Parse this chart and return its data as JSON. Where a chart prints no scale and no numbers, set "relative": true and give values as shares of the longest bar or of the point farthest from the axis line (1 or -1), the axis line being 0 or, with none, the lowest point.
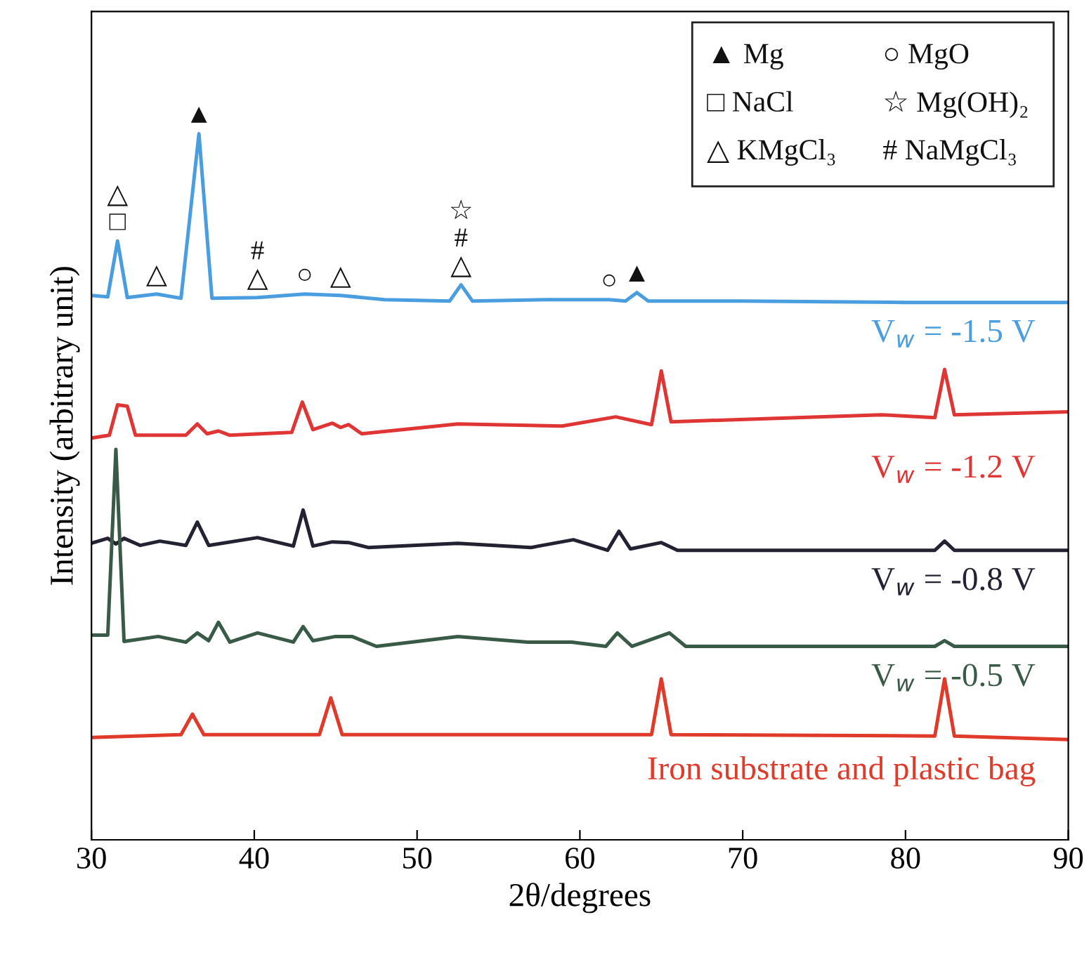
{
  "chart_data": {
    "type": "line",
    "relative": true,
    "xlabel": "2θ/degrees",
    "ylabel": "Intensity (arbitrary unit)",
    "xlim": [
      30,
      90
    ],
    "xticks": [
      30,
      40,
      50,
      60,
      70,
      80,
      90
    ],
    "grid": false,
    "marker": "none",
    "line_style": "solid",
    "series": [
      {
        "name": "V$_{w}$ = -1.5 V",
        "color": "#4a9ee0",
        "x": [
          30,
          31.0,
          31.6,
          32.2,
          34.0,
          35.5,
          36.6,
          37.4,
          40.2,
          43.1,
          45.3,
          48,
          52.0,
          52.7,
          53.4,
          58,
          61.8,
          62.8,
          63.5,
          64.2,
          70,
          80,
          90
        ],
        "values": [
          0.771,
          0.769,
          0.848,
          0.768,
          0.773,
          0.767,
          1.0,
          0.767,
          0.768,
          0.773,
          0.771,
          0.765,
          0.763,
          0.786,
          0.763,
          0.765,
          0.765,
          0.763,
          0.775,
          0.763,
          0.763,
          0.761,
          0.761
        ]
      },
      {
        "name": "V$_{w}$ = -1.2 V",
        "color": "#e03535",
        "x": [
          30,
          31.1,
          31.6,
          32.2,
          32.7,
          35.8,
          36.5,
          37.1,
          37.8,
          38.5,
          42.3,
          42.95,
          43.6,
          44.8,
          45.3,
          45.8,
          46.6,
          52.5,
          58.9,
          62.2,
          64.4,
          65.0,
          65.6,
          78.5,
          81.8,
          82.4,
          83.0,
          90
        ],
        "values": [
          0.569,
          0.573,
          0.616,
          0.614,
          0.573,
          0.573,
          0.589,
          0.575,
          0.579,
          0.573,
          0.577,
          0.62,
          0.581,
          0.59,
          0.584,
          0.588,
          0.575,
          0.589,
          0.586,
          0.599,
          0.588,
          0.664,
          0.592,
          0.602,
          0.598,
          0.666,
          0.602,
          0.606
        ]
      },
      {
        "name": "V$_{w}$ = -0.8 V",
        "color": "#222233",
        "x": [
          30,
          31.0,
          31.5,
          32.0,
          33.0,
          34.2,
          35.8,
          36.5,
          37.2,
          40.2,
          42.4,
          43.0,
          43.6,
          44.8,
          45.8,
          47,
          52.5,
          57,
          59.6,
          61.7,
          62.4,
          63.1,
          65,
          66,
          81.8,
          82.4,
          83.0,
          90
        ],
        "values": [
          0.42,
          0.427,
          0.419,
          0.427,
          0.417,
          0.423,
          0.417,
          0.45,
          0.417,
          0.428,
          0.416,
          0.467,
          0.416,
          0.422,
          0.421,
          0.414,
          0.42,
          0.414,
          0.425,
          0.41,
          0.437,
          0.412,
          0.421,
          0.41,
          0.41,
          0.423,
          0.41,
          0.41
        ]
      },
      {
        "name": "V$_{w}$ = -0.5 V",
        "color": "#3a5a48",
        "x": [
          30,
          31.0,
          31.5,
          32.0,
          34.1,
          35.8,
          36.5,
          37.2,
          37.8,
          38.5,
          40.2,
          42.4,
          43.0,
          43.6,
          45.0,
          46.0,
          47.5,
          52.5,
          56.8,
          59.5,
          61.6,
          62.3,
          63.2,
          65.5,
          66.5,
          81.8,
          82.4,
          83.0,
          90
        ],
        "values": [
          0.29,
          0.29,
          0.553,
          0.281,
          0.288,
          0.28,
          0.293,
          0.282,
          0.308,
          0.28,
          0.293,
          0.28,
          0.302,
          0.282,
          0.288,
          0.288,
          0.274,
          0.288,
          0.28,
          0.28,
          0.274,
          0.293,
          0.274,
          0.293,
          0.274,
          0.274,
          0.282,
          0.274,
          0.274
        ]
      },
      {
        "name": "Iron substrate and plastic bag",
        "color": "#e03a2a",
        "x": [
          30,
          35.5,
          36.2,
          36.9,
          44.0,
          44.7,
          45.4,
          64.4,
          65.0,
          65.6,
          81.8,
          82.4,
          83.0,
          90
        ],
        "values": [
          0.145,
          0.149,
          0.178,
          0.149,
          0.149,
          0.201,
          0.149,
          0.149,
          0.228,
          0.149,
          0.147,
          0.228,
          0.147,
          0.142
        ]
      }
    ],
    "annotations": [
      "▲ Mg",
      "□ NaCl",
      "△ KMgCl₃",
      "○ MgO",
      "☆ Mg(OH)₂",
      "# NaMgCl₃",
      {
        "text": "▲",
        "x": 36.6,
        "y": 1.0
      },
      {
        "text": "▲",
        "x": 63.5,
        "y": 0.775
      },
      {
        "text": "□",
        "x": 31.6,
        "y": 0.848
      },
      {
        "text": "△",
        "x": 31.6,
        "y": 0.848
      },
      {
        "text": "△",
        "x": 34.0,
        "y": 0.773
      },
      {
        "text": "△",
        "x": 40.2,
        "y": 0.768
      },
      {
        "text": "△",
        "x": 45.3,
        "y": 0.771
      },
      {
        "text": "△",
        "x": 52.7,
        "y": 0.786
      },
      {
        "text": "○",
        "x": 43.1,
        "y": 0.773
      },
      {
        "text": "○",
        "x": 61.8,
        "y": 0.765
      },
      {
        "text": "#",
        "x": 40.2,
        "y": 0.768
      },
      {
        "text": "#",
        "x": 52.7,
        "y": 0.786
      },
      {
        "text": "☆",
        "x": 52.7,
        "y": 0.786
      }
    ]
  }
}
